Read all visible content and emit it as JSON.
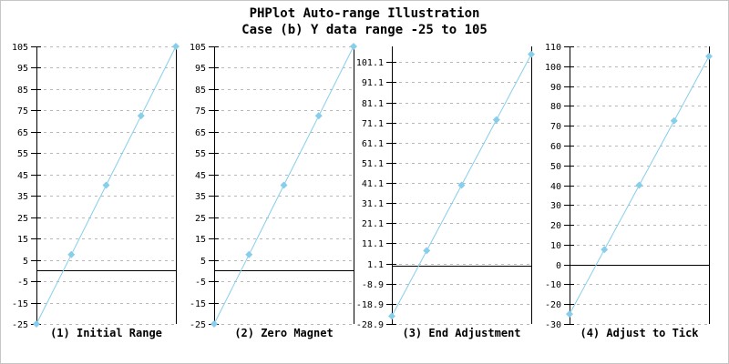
{
  "header": {
    "title_line1": "PHPlot Auto-range Illustration",
    "title_line2": "Case (b) Y data range -25 to 105"
  },
  "colors": {
    "background": "#FFFFFF",
    "image_border": "#C6C6C6",
    "axis": "#000000",
    "zero_line": "#000000",
    "grid": "#B8B8B8",
    "data_line": "#87CEEB",
    "marker": "#87CEEB",
    "text": "#000000"
  },
  "chart_data": [
    {
      "type": "line",
      "title": "(1) Initial Range",
      "x": [
        1,
        2,
        3,
        4,
        5
      ],
      "values": [
        -25,
        7.5,
        40,
        72.5,
        105
      ],
      "ylim": [
        -25,
        105
      ],
      "yticks": [
        -25,
        -15,
        -5,
        5,
        15,
        25,
        35,
        45,
        55,
        65,
        75,
        85,
        95,
        105
      ],
      "ytick_labels": [
        "-25",
        "-15",
        "-5",
        "5",
        "15",
        "25",
        "35",
        "45",
        "55",
        "65",
        "75",
        "85",
        "95",
        "105"
      ],
      "zero_line_y": 0,
      "grid": "horizontal-dashed",
      "marker": "diamond",
      "legend": "none"
    },
    {
      "type": "line",
      "title": "(2) Zero Magnet",
      "x": [
        1,
        2,
        3,
        4,
        5
      ],
      "values": [
        -25,
        7.5,
        40,
        72.5,
        105
      ],
      "ylim": [
        -25,
        105
      ],
      "yticks": [
        -25,
        -15,
        -5,
        5,
        15,
        25,
        35,
        45,
        55,
        65,
        75,
        85,
        95,
        105
      ],
      "ytick_labels": [
        "-25",
        "-15",
        "-5",
        "5",
        "15",
        "25",
        "35",
        "45",
        "55",
        "65",
        "75",
        "85",
        "95",
        "105"
      ],
      "zero_line_y": 0,
      "grid": "horizontal-dashed",
      "marker": "diamond",
      "legend": "none"
    },
    {
      "type": "line",
      "title": "(3) End Adjustment",
      "x": [
        1,
        2,
        3,
        4,
        5
      ],
      "values": [
        -25,
        7.5,
        40,
        72.5,
        105
      ],
      "ylim": [
        -28.9,
        108.9
      ],
      "yticks": [
        -28.9,
        -18.9,
        -8.9,
        1.1,
        11.1,
        21.1,
        31.1,
        41.1,
        51.1,
        61.1,
        71.1,
        81.1,
        91.1,
        101.1
      ],
      "ytick_labels": [
        "-28.9",
        "-18.9",
        "-8.9",
        "1.1",
        "11.1",
        "21.1",
        "31.1",
        "41.1",
        "51.1",
        "61.1",
        "71.1",
        "81.1",
        "91.1",
        "101.1"
      ],
      "zero_line_y": 0,
      "grid": "horizontal-dashed",
      "marker": "diamond",
      "legend": "none"
    },
    {
      "type": "line",
      "title": "(4) Adjust to Tick",
      "x": [
        1,
        2,
        3,
        4,
        5
      ],
      "values": [
        -25,
        7.5,
        40,
        72.5,
        105
      ],
      "ylim": [
        -30,
        110
      ],
      "yticks": [
        -30,
        -20,
        -10,
        0,
        10,
        20,
        30,
        40,
        50,
        60,
        70,
        80,
        90,
        100,
        110
      ],
      "ytick_labels": [
        "-30",
        "-20",
        "-10",
        "0",
        "10",
        "20",
        "30",
        "40",
        "50",
        "60",
        "70",
        "80",
        "90",
        "100",
        "110"
      ],
      "zero_line_y": 0,
      "grid": "horizontal-dashed",
      "marker": "diamond",
      "legend": "none"
    }
  ]
}
